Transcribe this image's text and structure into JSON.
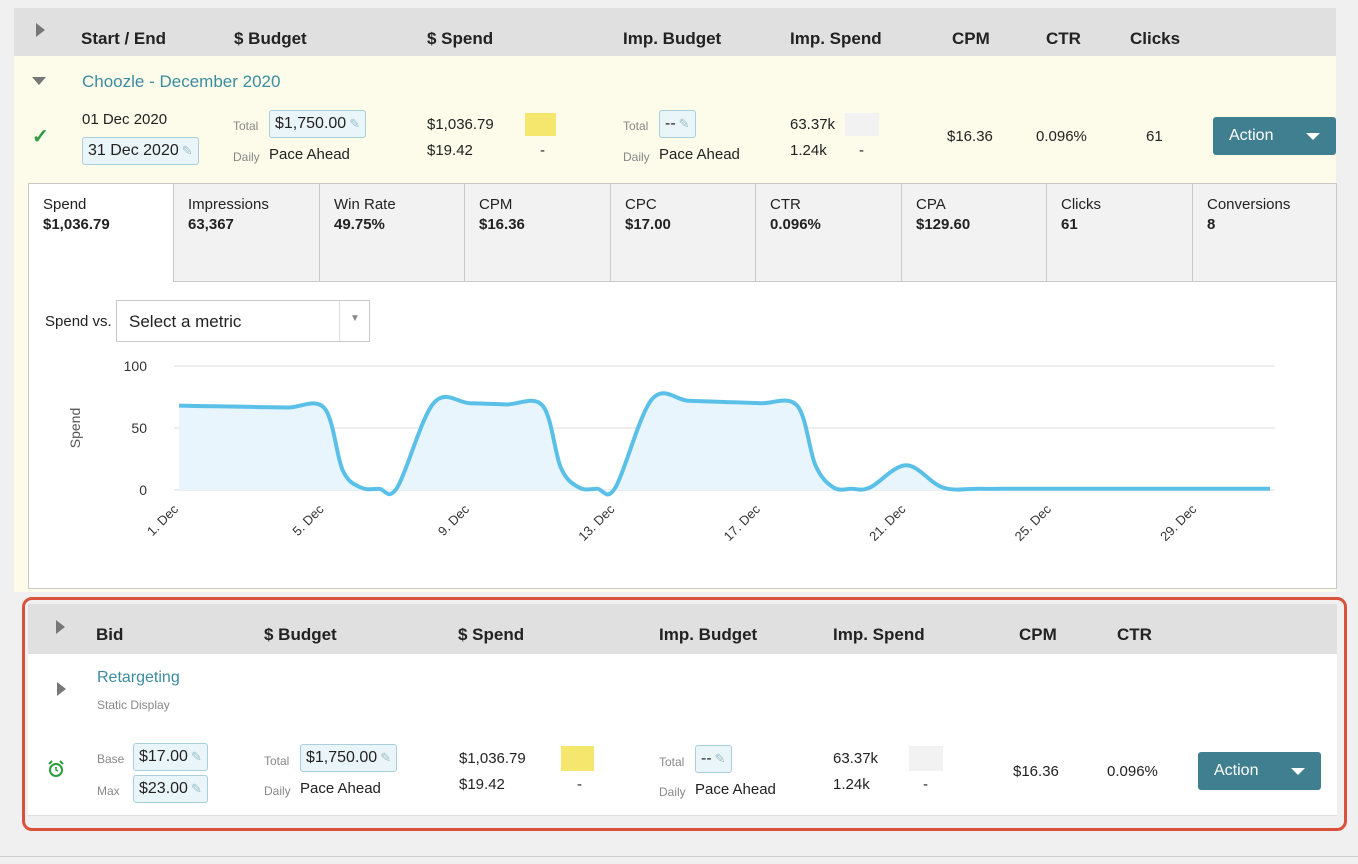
{
  "header": {
    "columns": [
      "Start / End",
      "$ Budget",
      "$ Spend",
      "Imp. Budget",
      "Imp. Spend",
      "CPM",
      "CTR",
      "Clicks"
    ]
  },
  "campaign": {
    "name": "Choozle - December 2020",
    "start": "01 Dec 2020",
    "end": "31 Dec 2020",
    "total_label": "Total",
    "daily_label": "Daily",
    "budget_total": "$1,750.00",
    "budget_daily": "Pace Ahead",
    "spend_total": "$1,036.79",
    "spend_daily": "$19.42",
    "spend_dash": "-",
    "imp_budget_total": "--",
    "imp_budget_daily": "Pace Ahead",
    "imp_spend_total": "63.37k",
    "imp_spend_daily": "1.24k",
    "imp_dash": "-",
    "cpm": "$16.36",
    "ctr": "0.096%",
    "clicks": "61",
    "action_label": "Action"
  },
  "metrics_tabs": [
    {
      "label": "Spend",
      "value": "$1,036.79"
    },
    {
      "label": "Impressions",
      "value": "63,367"
    },
    {
      "label": "Win Rate",
      "value": "49.75%"
    },
    {
      "label": "CPM",
      "value": "$16.36"
    },
    {
      "label": "CPC",
      "value": "$17.00"
    },
    {
      "label": "CTR",
      "value": "0.096%"
    },
    {
      "label": "CPA",
      "value": "$129.60"
    },
    {
      "label": "Clicks",
      "value": "61"
    },
    {
      "label": "Conversions",
      "value": "8"
    }
  ],
  "chart_controls": {
    "compare_label": "Spend vs.",
    "metric_placeholder": "Select a metric"
  },
  "chart_data": {
    "type": "area",
    "ylabel": "Spend",
    "xlabel": "",
    "ylim": [
      0,
      100
    ],
    "yticks": [
      0,
      50,
      100
    ],
    "xticks": [
      "1. Dec",
      "5. Dec",
      "9. Dec",
      "13. Dec",
      "17. Dec",
      "21. Dec",
      "25. Dec",
      "29. Dec"
    ],
    "series": [
      {
        "x": [
          1,
          2,
          3,
          4,
          5,
          5.5,
          6,
          6.5,
          7,
          8,
          9,
          10,
          11,
          11.5,
          12,
          12.5,
          13,
          14,
          15,
          16,
          17,
          18,
          18.5,
          19,
          19.5,
          20,
          21,
          22,
          23,
          24,
          25,
          26,
          27,
          28,
          29,
          30,
          31
        ],
        "y": [
          68,
          67.5,
          67,
          66.5,
          66,
          16,
          2,
          1,
          2,
          70,
          70,
          69,
          68,
          18,
          2,
          1,
          2,
          73,
          72,
          71,
          70,
          68,
          20,
          2,
          1,
          2,
          20,
          2,
          1,
          1,
          1,
          1,
          1,
          1,
          1,
          1,
          1
        ],
        "color": "#5ac0e8"
      }
    ]
  },
  "adgroup_header": {
    "columns": [
      "Bid",
      "$ Budget",
      "$ Spend",
      "Imp. Budget",
      "Imp. Spend",
      "CPM",
      "CTR"
    ]
  },
  "adgroup": {
    "name": "Retargeting",
    "type": "Static Display",
    "base_label": "Base",
    "max_label": "Max",
    "base_bid": "$17.00",
    "max_bid": "$23.00",
    "total_label": "Total",
    "daily_label": "Daily",
    "budget_total": "$1,750.00",
    "budget_daily": "Pace Ahead",
    "spend_total": "$1,036.79",
    "spend_daily": "$19.42",
    "spend_dash": "-",
    "imp_budget_total": "--",
    "imp_budget_daily": "Pace Ahead",
    "imp_spend_total": "63.37k",
    "imp_spend_daily": "1.24k",
    "imp_dash": "-",
    "cpm": "$16.36",
    "ctr": "0.096%",
    "action_label": "Action"
  },
  "colors": {
    "accent": "#3f7f8f",
    "link": "#3b8ca0",
    "highlight_border": "#d9533c",
    "pace_yellow": "#f5e66e",
    "check_green": "#2a9d3f"
  }
}
